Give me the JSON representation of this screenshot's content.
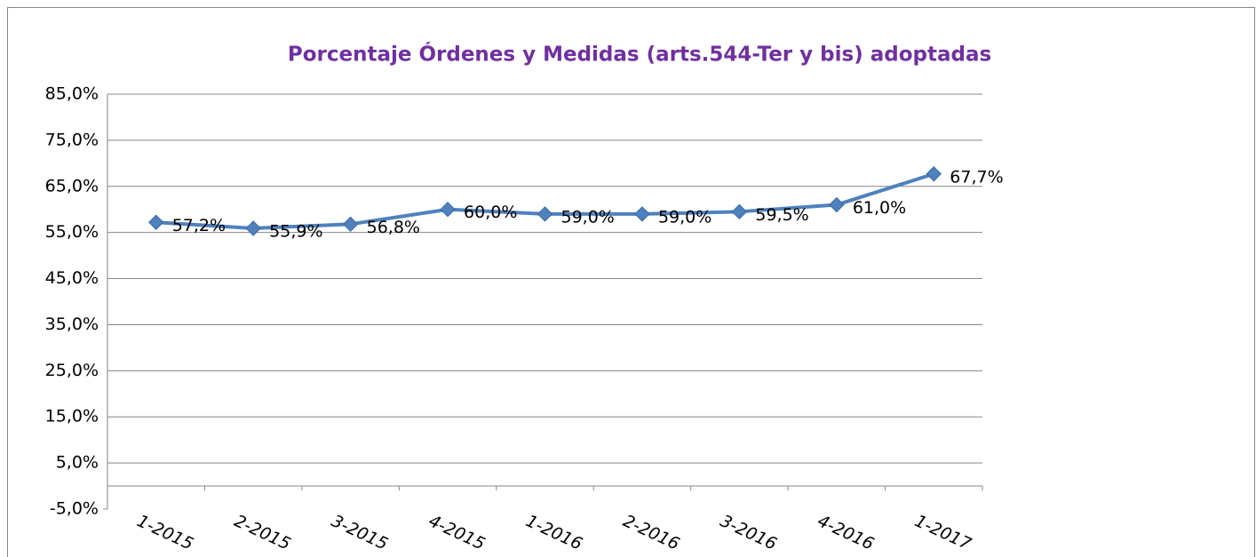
{
  "chart_data": {
    "type": "line",
    "title": "Porcentaje Órdenes y Medidas (arts.544-Ter y bis) adoptadas",
    "categories": [
      "1-2015",
      "2-2015",
      "3-2015",
      "4-2015",
      "1-2016",
      "2-2016",
      "3-2016",
      "4-2016",
      "1-2017"
    ],
    "series": [
      {
        "name": "Porcentaje",
        "color": "#4f81bd",
        "values": [
          57.2,
          55.9,
          56.8,
          60.0,
          59.0,
          59.0,
          59.5,
          61.0,
          67.7
        ],
        "value_labels": [
          "57,2%",
          "55,9%",
          "56,8%",
          "60,0%",
          "59,0%",
          "59,0%",
          "59,5%",
          "61,0%",
          "67,7%"
        ]
      }
    ],
    "ylim": [
      -5,
      85
    ],
    "yticks": [
      {
        "value": -5,
        "label": "-5,0%"
      },
      {
        "value": 5,
        "label": "5,0%"
      },
      {
        "value": 15,
        "label": "15,0%"
      },
      {
        "value": 25,
        "label": "25,0%"
      },
      {
        "value": 35,
        "label": "35,0%"
      },
      {
        "value": 45,
        "label": "45,0%"
      },
      {
        "value": 55,
        "label": "55,0%"
      },
      {
        "value": 65,
        "label": "65,0%"
      },
      {
        "value": 75,
        "label": "75,0%"
      },
      {
        "value": 85,
        "label": "85,0%"
      }
    ],
    "grid": true
  }
}
